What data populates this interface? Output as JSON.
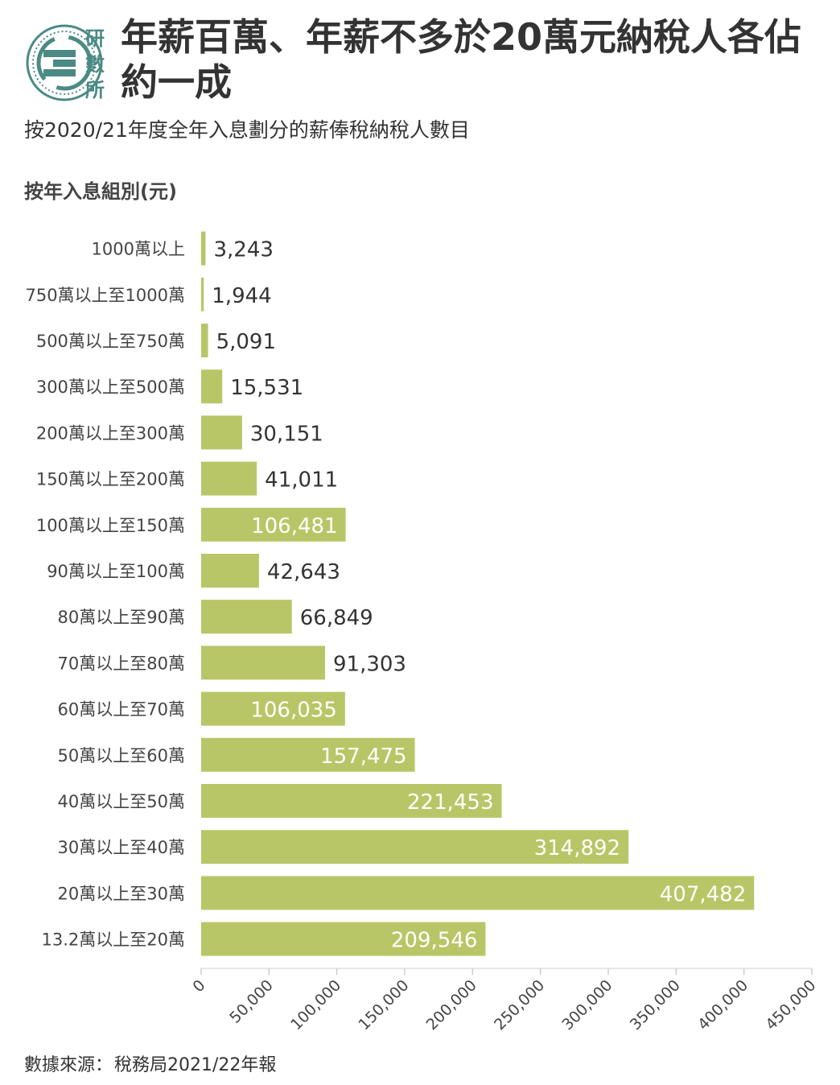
{
  "header": {
    "logo_text": [
      "研",
      "數",
      "所"
    ],
    "title": "年薪百萬、年薪不多於20萬元納稅人各佔約一成",
    "subtitle": "按2020/21年度全年入息劃分的薪俸稅納稅人數目"
  },
  "footer": {
    "source_label": "數據來源：",
    "source_value": "稅務局2021/22年報"
  },
  "colors": {
    "bar": "#b9c667",
    "logo": "#4b8a85",
    "label_inside": "#ffffff",
    "label_outside": "#333333"
  },
  "chart_data": {
    "type": "bar",
    "orientation": "horizontal",
    "ylabel": "按年入息組別(元)",
    "categories": [
      "1000萬以上",
      "750萬以上至1000萬",
      "500萬以上至750萬",
      "300萬以上至500萬",
      "200萬以上至300萬",
      "150萬以上至200萬",
      "100萬以上至150萬",
      "90萬以上至100萬",
      "80萬以上至90萬",
      "70萬以上至80萬",
      "60萬以上至70萬",
      "50萬以上至60萬",
      "40萬以上至50萬",
      "30萬以上至40萬",
      "20萬以上至30萬",
      "13.2萬以上至20萬"
    ],
    "values": [
      3243,
      1944,
      5091,
      15531,
      30151,
      41011,
      106481,
      42643,
      66849,
      91303,
      106035,
      157475,
      221453,
      314892,
      407482,
      209546
    ],
    "value_labels": [
      "3,243",
      "1,944",
      "5,091",
      "15,531",
      "30,151",
      "41,011",
      "106,481",
      "42,643",
      "66,849",
      "91,303",
      "106,035",
      "157,475",
      "221,453",
      "314,892",
      "407,482",
      "209,546"
    ],
    "xlim": [
      0,
      450000
    ],
    "xticks": [
      0,
      50000,
      100000,
      150000,
      200000,
      250000,
      300000,
      350000,
      400000,
      450000
    ],
    "xtick_labels": [
      "0",
      "50,000",
      "100,000",
      "150,000",
      "200,000",
      "250,000",
      "300,000",
      "350,000",
      "400,000",
      "450,000"
    ],
    "grid": false,
    "legend": "none"
  }
}
